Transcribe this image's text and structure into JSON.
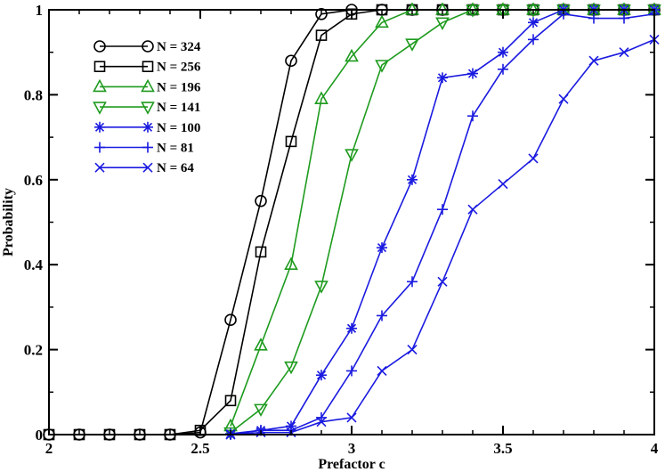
{
  "chart_data": {
    "type": "line",
    "title": "",
    "xlabel": "Prefactor c",
    "ylabel": "Probability",
    "xlim": [
      2,
      4
    ],
    "ylim": [
      0,
      1
    ],
    "xticks": [
      2,
      2.5,
      3,
      3.5,
      4
    ],
    "yticks": [
      0,
      0.2,
      0.4,
      0.6,
      0.8,
      1
    ],
    "xtick_labels": [
      "2",
      "2.5",
      "3",
      "3.5",
      "4"
    ],
    "ytick_labels": [
      "0",
      "0.2",
      "0.4",
      "0.6",
      "0.8",
      "1"
    ],
    "grid": false,
    "legend_position": "top-left",
    "series": [
      {
        "name": "N = 324",
        "color": "#000000",
        "marker": "circle",
        "x": [
          2.0,
          2.1,
          2.2,
          2.3,
          2.4,
          2.5,
          2.6,
          2.7,
          2.8,
          2.9,
          3.0,
          3.1,
          3.2,
          3.3,
          3.4,
          3.5,
          3.6,
          3.7,
          3.8,
          3.9,
          4.0
        ],
        "y": [
          0,
          0,
          0,
          0,
          0,
          0.005,
          0.27,
          0.55,
          0.88,
          0.99,
          1,
          1,
          1,
          1,
          1,
          1,
          1,
          1,
          1,
          1,
          1
        ]
      },
      {
        "name": "N = 256",
        "color": "#000000",
        "marker": "square",
        "x": [
          2.0,
          2.1,
          2.2,
          2.3,
          2.4,
          2.5,
          2.6,
          2.7,
          2.8,
          2.9,
          3.0,
          3.1,
          3.2,
          3.3,
          3.4,
          3.5,
          3.6,
          3.7,
          3.8,
          3.9,
          4.0
        ],
        "y": [
          0,
          0,
          0,
          0,
          0,
          0.01,
          0.08,
          0.43,
          0.69,
          0.94,
          0.99,
          1,
          1,
          1,
          1,
          1,
          1,
          1,
          1,
          1,
          1
        ]
      },
      {
        "name": "N = 196",
        "color": "#1e9b1e",
        "marker": "triangle-up",
        "x": [
          2.6,
          2.7,
          2.8,
          2.9,
          3.0,
          3.1,
          3.2,
          3.3,
          3.4,
          3.5,
          3.6,
          3.7,
          3.8,
          3.9,
          4.0
        ],
        "y": [
          0.02,
          0.21,
          0.4,
          0.79,
          0.89,
          0.97,
          1,
          1,
          1,
          1,
          1,
          1,
          1,
          1,
          1
        ]
      },
      {
        "name": "N = 141",
        "color": "#1e9b1e",
        "marker": "triangle-down",
        "x": [
          2.6,
          2.7,
          2.8,
          2.9,
          3.0,
          3.1,
          3.2,
          3.3,
          3.4,
          3.5,
          3.6,
          3.7,
          3.8,
          3.9,
          4.0
        ],
        "y": [
          0.005,
          0.06,
          0.16,
          0.35,
          0.66,
          0.87,
          0.92,
          0.97,
          1,
          1,
          1,
          1,
          1,
          1,
          1
        ]
      },
      {
        "name": "N = 100",
        "color": "#1a1ae0",
        "marker": "star",
        "x": [
          2.6,
          2.7,
          2.8,
          2.9,
          3.0,
          3.1,
          3.2,
          3.3,
          3.4,
          3.5,
          3.6,
          3.7,
          3.8,
          3.9,
          4.0
        ],
        "y": [
          0.002,
          0.01,
          0.02,
          0.14,
          0.25,
          0.44,
          0.6,
          0.84,
          0.85,
          0.9,
          0.97,
          1,
          1,
          1,
          1
        ]
      },
      {
        "name": "N = 81",
        "color": "#1a1ae0",
        "marker": "plus",
        "x": [
          2.6,
          2.7,
          2.8,
          2.9,
          3.0,
          3.1,
          3.2,
          3.3,
          3.4,
          3.5,
          3.6,
          3.7,
          3.8,
          3.9,
          4.0
        ],
        "y": [
          0,
          0.01,
          0.01,
          0.04,
          0.15,
          0.28,
          0.36,
          0.53,
          0.75,
          0.86,
          0.93,
          0.99,
          0.98,
          0.98,
          0.99
        ]
      },
      {
        "name": "N = 64",
        "color": "#1a1ae0",
        "marker": "cross",
        "x": [
          2.6,
          2.7,
          2.8,
          2.9,
          3.0,
          3.1,
          3.2,
          3.3,
          3.4,
          3.5,
          3.6,
          3.7,
          3.8,
          3.9,
          4.0
        ],
        "y": [
          0,
          0.005,
          0.005,
          0.03,
          0.04,
          0.15,
          0.2,
          0.36,
          0.53,
          0.59,
          0.65,
          0.79,
          0.88,
          0.9,
          0.93
        ]
      }
    ]
  }
}
